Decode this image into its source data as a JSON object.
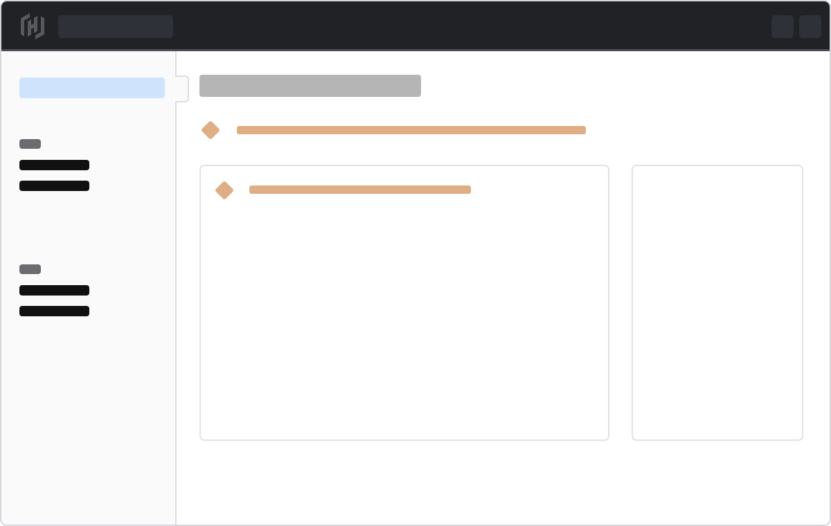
{
  "colors": {
    "header_bg": "#212226",
    "header_control": "#2f3139",
    "logo": "#58595e",
    "sidebar_bg": "#fafafa",
    "sidebar_active": "#cfe4fc",
    "group_label": "#6b6b70",
    "nav_item": "#111111",
    "title_placeholder": "#b5b5b5",
    "accent": "#dfae84",
    "card_border": "#e2e2e4"
  },
  "icons": {
    "logo": "hashicorp-logo-icon",
    "diamond": "diamond-icon"
  }
}
